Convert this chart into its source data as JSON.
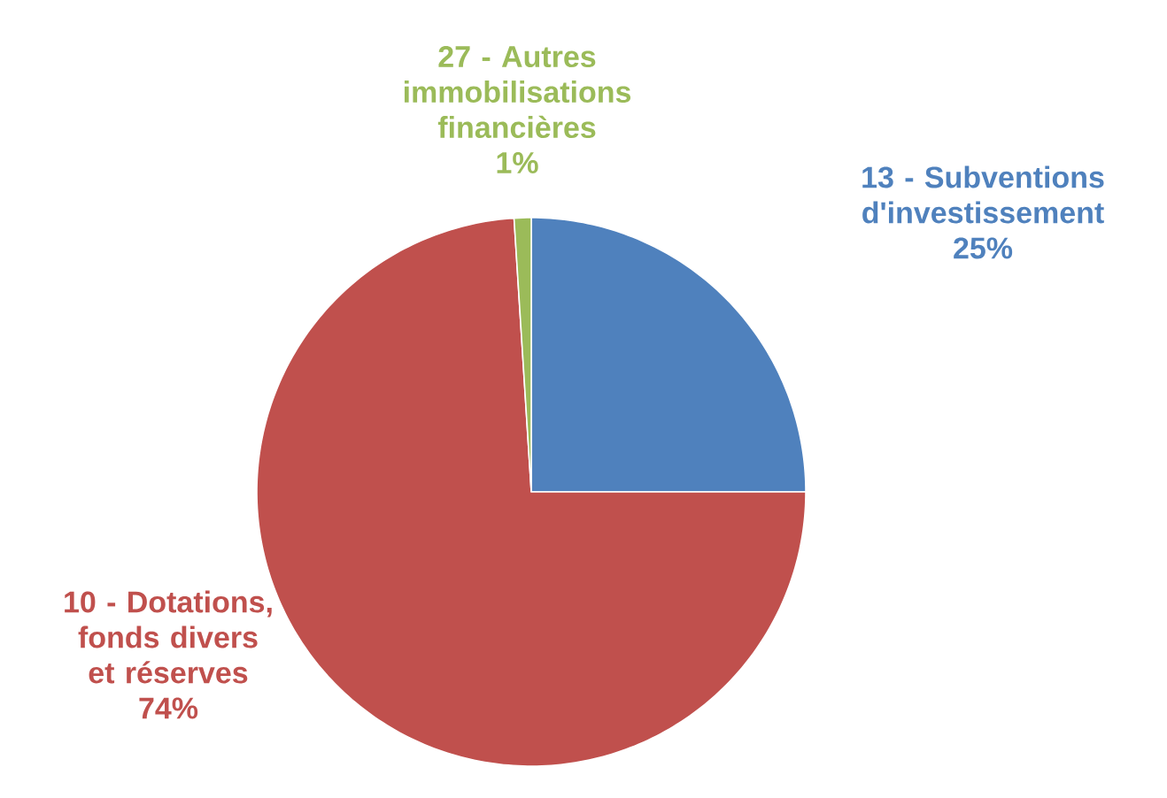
{
  "chart_data": {
    "type": "pie",
    "categories": [
      "13 - Subventions d'investissement",
      "10 - Dotations, fonds divers et réserves",
      "27 - Autres immobilisations financières"
    ],
    "values": [
      25,
      74,
      1
    ],
    "value_labels": [
      "25%",
      "74%",
      "1%"
    ],
    "colors": [
      "#4f81bd",
      "#c0504d",
      "#9bbb59"
    ]
  }
}
